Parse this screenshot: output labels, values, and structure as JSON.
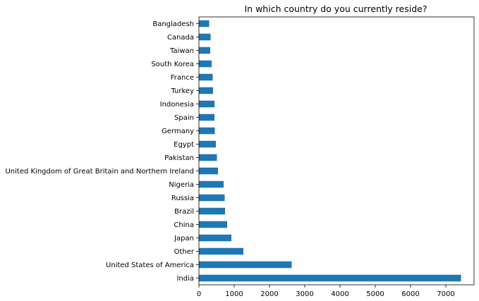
{
  "chart_data": {
    "type": "bar",
    "orientation": "horizontal",
    "title": "In which country do you currently reside?",
    "xlabel": "",
    "ylabel": "",
    "xlim": [
      0,
      7800
    ],
    "xticks": [
      0,
      1000,
      2000,
      3000,
      4000,
      5000,
      6000,
      7000
    ],
    "grid": false,
    "bar_color": "#1f77b4",
    "categories": [
      "India",
      "United States of America",
      "Other",
      "Japan",
      "China",
      "Brazil",
      "Russia",
      "Nigeria",
      "United Kingdom of Great Britain and Northern Ireland",
      "Pakistan",
      "Egypt",
      "Germany",
      "Spain",
      "Indonesia",
      "Turkey",
      "France",
      "South Korea",
      "Taiwan",
      "Canada",
      "Bangladesh"
    ],
    "values": [
      7430,
      2630,
      1260,
      920,
      800,
      740,
      730,
      700,
      540,
      510,
      480,
      450,
      440,
      440,
      400,
      390,
      360,
      320,
      330,
      290
    ]
  }
}
